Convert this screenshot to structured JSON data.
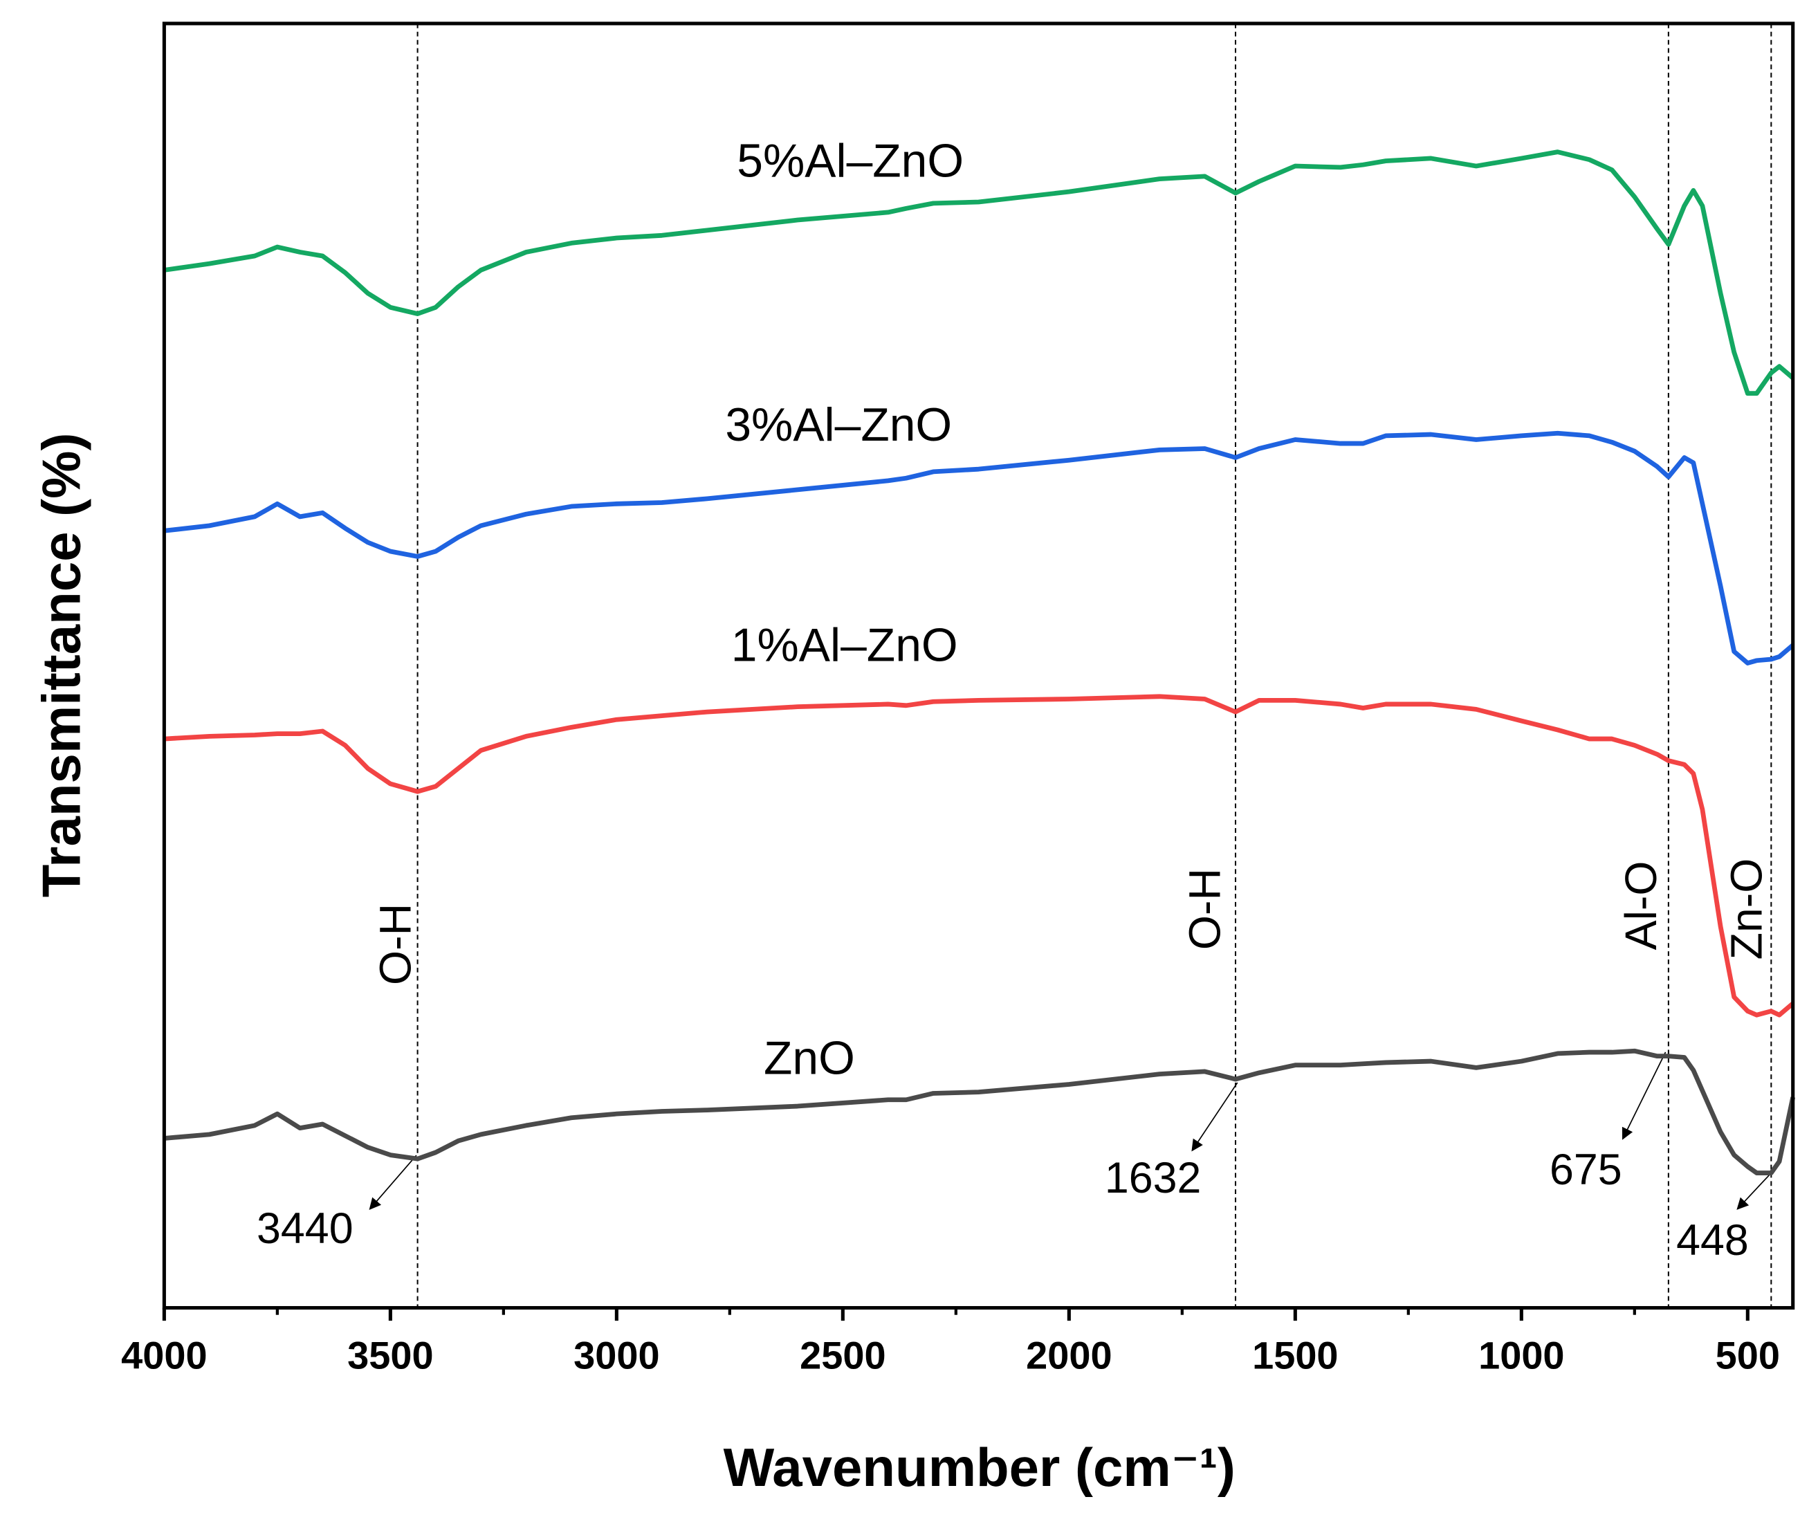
{
  "chart_data": {
    "type": "line",
    "x_label": "Wavenumber (cm⁻¹)",
    "y_label": "Transmittance (%)",
    "xlim": [
      4000,
      400
    ],
    "ylim": [
      0,
      100
    ],
    "xticks": [
      4000,
      3500,
      3000,
      2500,
      2000,
      1500,
      1000,
      500
    ],
    "xminorticks": [
      3750,
      3250,
      2750,
      2250,
      1750,
      1250,
      750
    ],
    "x": [
      4000,
      3900,
      3800,
      3750,
      3700,
      3650,
      3600,
      3550,
      3500,
      3440,
      3400,
      3350,
      3300,
      3200,
      3100,
      3000,
      2900,
      2800,
      2600,
      2400,
      2360,
      2300,
      2200,
      2000,
      1800,
      1700,
      1632,
      1580,
      1500,
      1400,
      1350,
      1300,
      1200,
      1100,
      1000,
      920,
      850,
      800,
      750,
      700,
      675,
      640,
      620,
      600,
      560,
      530,
      500,
      480,
      448,
      430,
      400
    ],
    "series": [
      {
        "name": "ZnO",
        "color": "#4a4a4a",
        "values": [
          13.2,
          13.5,
          14.2,
          15.1,
          14.0,
          14.3,
          13.4,
          12.5,
          11.9,
          11.6,
          12.1,
          13.0,
          13.5,
          14.2,
          14.8,
          15.1,
          15.3,
          15.4,
          15.7,
          16.2,
          16.2,
          16.7,
          16.8,
          17.4,
          18.2,
          18.4,
          17.8,
          18.3,
          18.9,
          18.9,
          19.0,
          19.1,
          19.2,
          18.7,
          19.2,
          19.8,
          19.9,
          19.9,
          20.0,
          19.6,
          19.6,
          19.5,
          18.5,
          16.9,
          13.7,
          11.9,
          11.0,
          10.5,
          10.5,
          11.4,
          16.4
        ]
      },
      {
        "name": "1%Al–ZnO",
        "color": "#f24444",
        "values": [
          44.3,
          44.5,
          44.6,
          44.7,
          44.7,
          44.9,
          43.8,
          42.0,
          40.8,
          40.2,
          40.6,
          42.0,
          43.4,
          44.5,
          45.2,
          45.8,
          46.1,
          46.4,
          46.8,
          47.0,
          46.9,
          47.2,
          47.3,
          47.4,
          47.6,
          47.4,
          46.4,
          47.3,
          47.3,
          47.0,
          46.7,
          47.0,
          47.0,
          46.6,
          45.7,
          45.0,
          44.3,
          44.3,
          43.8,
          43.1,
          42.6,
          42.3,
          41.6,
          38.8,
          29.7,
          24.2,
          23.1,
          22.8,
          23.1,
          22.8,
          23.7
        ]
      },
      {
        "name": "3%Al–ZnO",
        "color": "#1f63e0",
        "values": [
          60.5,
          60.9,
          61.6,
          62.6,
          61.6,
          61.9,
          60.7,
          59.6,
          58.9,
          58.5,
          58.9,
          60.0,
          60.9,
          61.8,
          62.4,
          62.6,
          62.7,
          63.0,
          63.7,
          64.4,
          64.6,
          65.1,
          65.3,
          66.0,
          66.8,
          66.9,
          66.2,
          66.9,
          67.6,
          67.3,
          67.3,
          67.9,
          68.0,
          67.6,
          67.9,
          68.1,
          67.9,
          67.4,
          66.7,
          65.5,
          64.7,
          66.2,
          65.8,
          62.6,
          56.2,
          51.1,
          50.2,
          50.4,
          50.5,
          50.7,
          51.6
        ]
      },
      {
        "name": "5%Al–ZnO",
        "color": "#14a862",
        "values": [
          80.8,
          81.3,
          81.9,
          82.6,
          82.2,
          81.9,
          80.6,
          79.0,
          77.9,
          77.4,
          77.9,
          79.5,
          80.8,
          82.2,
          82.9,
          83.3,
          83.5,
          83.9,
          84.7,
          85.3,
          85.6,
          86.0,
          86.1,
          86.9,
          87.9,
          88.1,
          86.8,
          87.7,
          88.9,
          88.8,
          89.0,
          89.3,
          89.5,
          88.9,
          89.5,
          90.0,
          89.4,
          88.6,
          86.5,
          84.0,
          82.8,
          85.8,
          87.0,
          85.8,
          79.0,
          74.4,
          71.2,
          71.2,
          72.8,
          73.3,
          72.4
        ]
      }
    ],
    "annotations": [
      {
        "x": 3440,
        "text": "O-H"
      },
      {
        "x": 1632,
        "text": "O-H"
      },
      {
        "x": 675,
        "text": "Al-O"
      },
      {
        "x": 448,
        "text": "Zn-O"
      }
    ]
  }
}
